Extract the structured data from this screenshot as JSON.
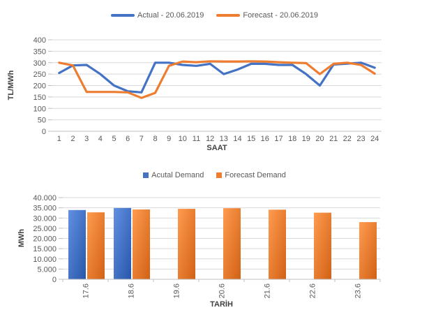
{
  "colors": {
    "actual_blue": "#4472C4",
    "forecast_orange": "#ED7D31",
    "gridline": "#D9D9D9",
    "axis_line": "#BFBFBF",
    "tick_text": "#595959",
    "axis_title_text": "#404040"
  },
  "chart_data": [
    {
      "type": "line",
      "title": "",
      "legend_position": "top",
      "xlabel": "SAAT",
      "ylabel": "TL/MWh",
      "ylim": [
        0,
        400
      ],
      "ytick_step": 50,
      "ytick_labels": [
        "0",
        "50",
        "100",
        "150",
        "200",
        "250",
        "300",
        "350",
        "400"
      ],
      "grid": true,
      "x": [
        "1",
        "2",
        "3",
        "4",
        "5",
        "6",
        "7",
        "8",
        "9",
        "10",
        "11",
        "12",
        "13",
        "14",
        "15",
        "16",
        "17",
        "18",
        "19",
        "20",
        "21",
        "22",
        "23",
        "24"
      ],
      "series": [
        {
          "name": "Actual - 20.06.2019",
          "color": "#4472C4",
          "values": [
            255,
            288,
            290,
            250,
            200,
            175,
            170,
            300,
            300,
            290,
            286,
            295,
            250,
            270,
            295,
            295,
            290,
            290,
            250,
            200,
            292,
            296,
            300,
            278
          ]
        },
        {
          "name": "Forecast - 20.06.2019",
          "color": "#ED7D31",
          "values": [
            300,
            288,
            172,
            172,
            172,
            170,
            146,
            168,
            286,
            305,
            302,
            306,
            305,
            305,
            306,
            305,
            302,
            300,
            298,
            250,
            295,
            300,
            290,
            252
          ]
        }
      ]
    },
    {
      "type": "bar",
      "title": "",
      "legend_position": "top",
      "xlabel": "TARİH",
      "ylabel": "MWh",
      "ylim": [
        0,
        40000
      ],
      "ytick_step": 5000,
      "ytick_labels": [
        "0",
        "5.000",
        "10.000",
        "15.000",
        "20.000",
        "25.000",
        "30.000",
        "35.000",
        "40.000"
      ],
      "grid": true,
      "categories": [
        "17.6",
        "18.6",
        "19.6",
        "20.6",
        "21.6",
        "22.6",
        "23.6"
      ],
      "series": [
        {
          "name": "Acutal Demand",
          "color": "#4472C4",
          "values": [
            33900,
            34900,
            null,
            null,
            null,
            null,
            null
          ]
        },
        {
          "name": "Forecast Demand",
          "color": "#ED7D31",
          "values": [
            32800,
            34200,
            34500,
            34800,
            34100,
            32600,
            28000
          ]
        }
      ]
    }
  ]
}
